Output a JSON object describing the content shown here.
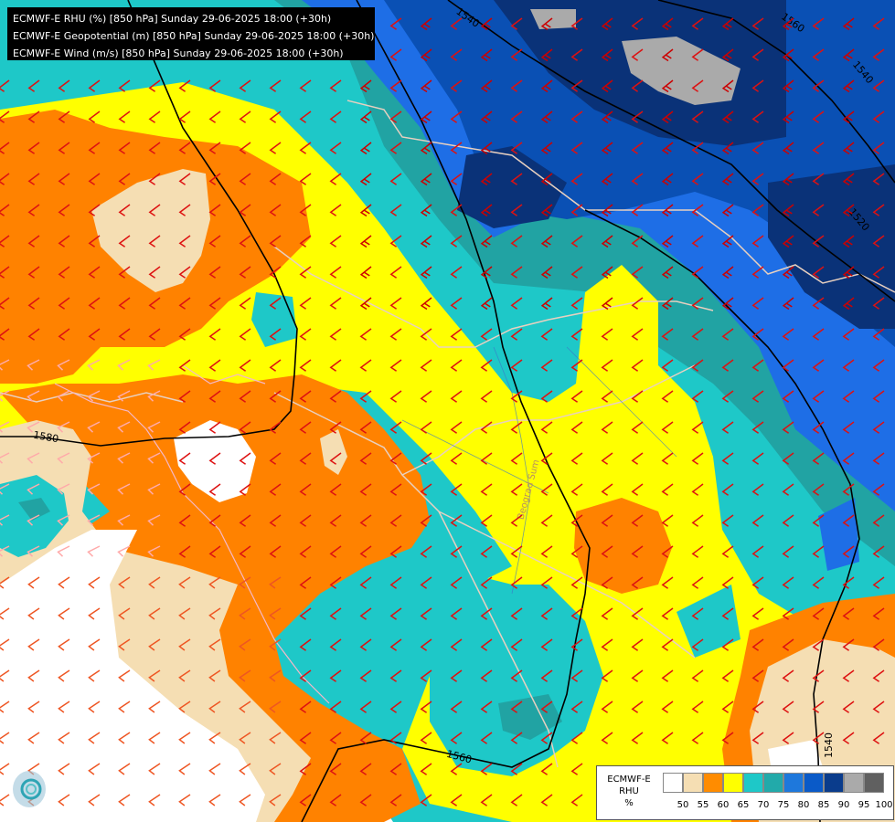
{
  "title_lines": [
    "ECMWF-E RHU (%) [850 hPa] Sunday 29-06-2025 18:00 (+30h)",
    "ECMWF-E Geopotential (m) [850 hPa] Sunday 29-06-2025 18:00 (+30h)",
    "ECMWF-E Wind (m/s) [850 hPa] Sunday 29-06-2025 18:00 (+30h)"
  ],
  "legend": {
    "title_lines": [
      "ECMWF-E",
      "RHU",
      "%"
    ],
    "bins": [
      {
        "label": "",
        "color": "#ffffff"
      },
      {
        "label": "50",
        "color": "#f5deb3"
      },
      {
        "label": "55",
        "color": "#ff8c00"
      },
      {
        "label": "60",
        "color": "#ffff00"
      },
      {
        "label": "65",
        "color": "#1ec8c8"
      },
      {
        "label": "70",
        "color": "#22aaaa"
      },
      {
        "label": "75",
        "color": "#1e78dc"
      },
      {
        "label": "80",
        "color": "#0a5ac8"
      },
      {
        "label": "85",
        "color": "#0a3c8c"
      },
      {
        "label": "90",
        "color": "#aaaaaa"
      },
      {
        "label": "95",
        "color": "#606060"
      },
      {
        "label": "100",
        "color": ""
      }
    ]
  },
  "contour_labels": [
    "1540",
    "1560",
    "1580",
    "1520",
    "1560",
    "1540",
    "1540"
  ],
  "region_label": "Beograd Sum",
  "colors": {
    "white": "#ffffff",
    "lt_orange": "#f5deb3",
    "orange": "#ff8200",
    "yellow": "#ffff00",
    "cyan": "#1ec8c8",
    "teal": "#21a3a3",
    "blue": "#1e6ee6",
    "mid_blue": "#0a50b4",
    "dark_blue": "#0a3278",
    "grey": "#aaaaaa",
    "border": "#e8d0c0"
  },
  "wind_barbs": [
    {
      "u": -8,
      "v": -6,
      "color": "#dd1111"
    },
    {
      "u": -10,
      "v": -8,
      "color": "#cc0000"
    },
    {
      "u": -6,
      "v": -4,
      "color": "#ee5522"
    },
    {
      "u": -4,
      "v": -2,
      "color": "#ffaaaa"
    }
  ]
}
